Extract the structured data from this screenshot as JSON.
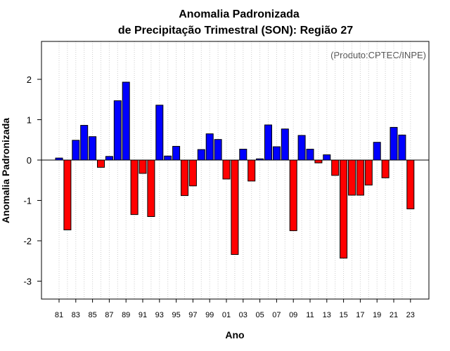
{
  "chart_data": {
    "type": "bar",
    "title": "Anomalia Padronizada",
    "subtitle": "de Precipitação Trimestral (SON): Região 27",
    "xlabel": "Ano",
    "ylabel": "Anomalia Padronizada",
    "annotation": "(Produto:CPTEC/INPE)",
    "ylim": [
      -3.4,
      3.0
    ],
    "yticks": [
      -3,
      -2,
      -1,
      0,
      1,
      2
    ],
    "grid": "vertical dotted",
    "categories": [
      "81",
      "82",
      "83",
      "84",
      "85",
      "86",
      "87",
      "88",
      "89",
      "90",
      "91",
      "92",
      "93",
      "94",
      "95",
      "96",
      "97",
      "98",
      "99",
      "00",
      "01",
      "02",
      "03",
      "04",
      "05",
      "06",
      "07",
      "08",
      "09",
      "10",
      "11",
      "12",
      "13",
      "14",
      "15",
      "16",
      "17",
      "18",
      "19",
      "20",
      "21",
      "22",
      "23"
    ],
    "xtick_labels": [
      "81",
      "83",
      "85",
      "87",
      "89",
      "91",
      "93",
      "95",
      "97",
      "99",
      "01",
      "03",
      "05",
      "07",
      "09",
      "11",
      "13",
      "15",
      "17",
      "19",
      "21",
      "23"
    ],
    "values": [
      0.05,
      -1.73,
      0.49,
      0.86,
      0.58,
      -0.18,
      0.09,
      1.47,
      1.93,
      -1.35,
      -0.33,
      -1.4,
      1.36,
      0.1,
      0.34,
      -0.88,
      -0.64,
      0.26,
      0.65,
      0.51,
      -0.47,
      -2.34,
      0.27,
      -0.52,
      0.03,
      0.87,
      0.33,
      0.77,
      -1.75,
      0.61,
      0.27,
      -0.07,
      0.13,
      -0.38,
      -2.43,
      -0.87,
      -0.87,
      -0.62,
      0.44,
      -0.44,
      0.81,
      0.62,
      -1.21
    ],
    "colors": {
      "positive": "#0000ff",
      "negative": "#ff0000"
    }
  }
}
